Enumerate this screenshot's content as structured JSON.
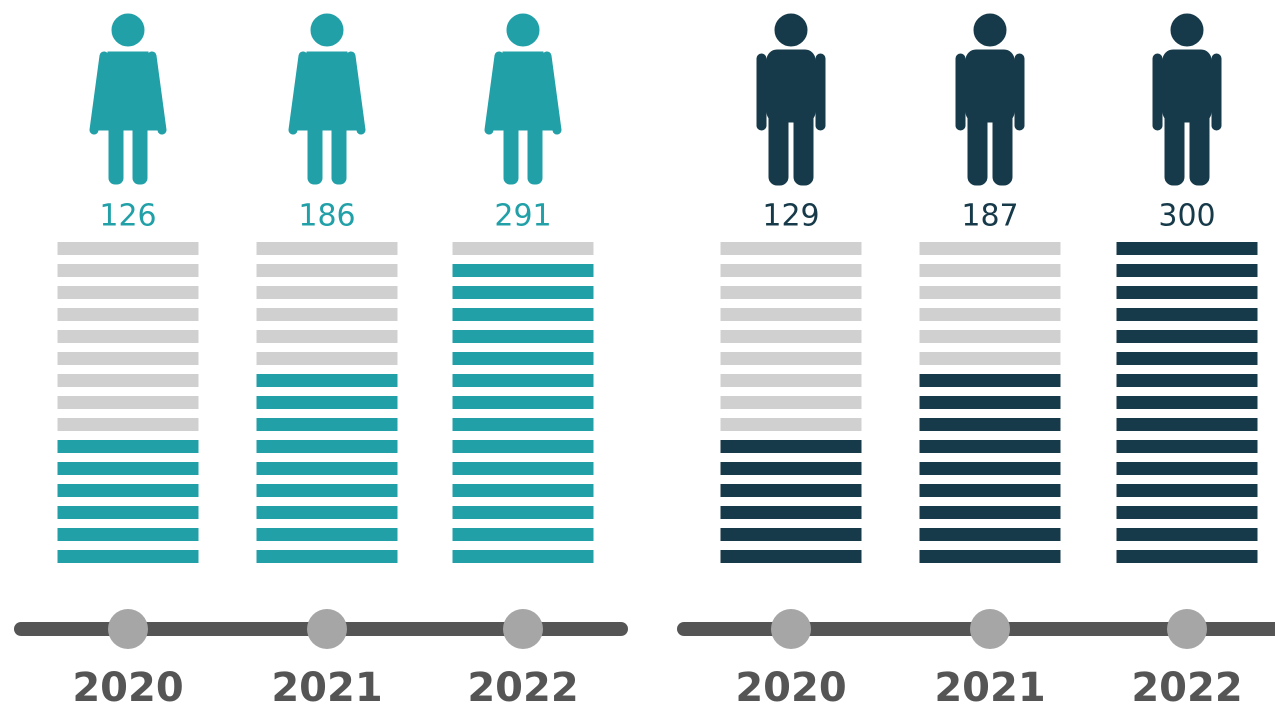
{
  "chart_data": [
    {
      "type": "pictogram",
      "icon": "woman",
      "color": "#21a0a8",
      "categories": [
        "2020",
        "2021",
        "2022"
      ],
      "values": [
        126,
        186,
        291
      ],
      "ylim": [
        0,
        300
      ]
    },
    {
      "type": "pictogram",
      "icon": "man",
      "color": "#173a4a",
      "categories": [
        "2020",
        "2021",
        "2022"
      ],
      "values": [
        129,
        187,
        300
      ],
      "ylim": [
        0,
        300
      ]
    }
  ]
}
